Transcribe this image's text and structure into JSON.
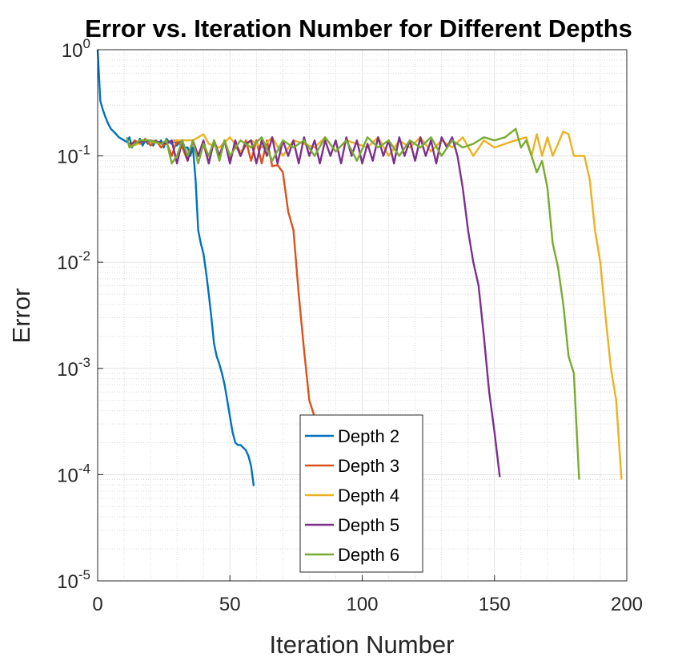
{
  "chart_data": {
    "type": "line",
    "title": "Error vs. Iteration Number for Different Depths",
    "xlabel": "Iteration Number",
    "ylabel": "Error",
    "xlim": [
      0,
      200
    ],
    "ylim": [
      1e-05,
      1
    ],
    "yscale": "log",
    "grid": true,
    "minor_grid": true,
    "legend_position": "bottom-center",
    "x_ticks": [
      "0",
      "50",
      "100",
      "150",
      "200"
    ],
    "y_ticks": [
      {
        "base": "10",
        "exp": "0"
      },
      {
        "base": "10",
        "exp": "-1"
      },
      {
        "base": "10",
        "exp": "-2"
      },
      {
        "base": "10",
        "exp": "-3"
      },
      {
        "base": "10",
        "exp": "-4"
      },
      {
        "base": "10",
        "exp": "-5"
      }
    ],
    "series": [
      {
        "name": "Depth 2",
        "color": "#0072BD",
        "x": [
          0,
          1,
          2,
          3,
          4,
          5,
          6,
          7,
          8,
          9,
          10,
          11,
          12,
          13,
          14,
          15,
          16,
          17,
          18,
          19,
          20,
          21,
          22,
          23,
          24,
          25,
          26,
          27,
          28,
          29,
          30,
          31,
          32,
          33,
          34,
          35,
          36,
          37,
          38,
          39,
          40,
          41,
          42,
          43,
          44,
          45,
          46,
          47,
          48,
          49,
          50,
          51,
          52,
          53,
          54,
          55,
          56,
          57,
          58,
          59
        ],
        "y": [
          1.0,
          0.33,
          0.27,
          0.23,
          0.2,
          0.18,
          0.17,
          0.16,
          0.15,
          0.145,
          0.14,
          0.135,
          0.15,
          0.12,
          0.14,
          0.13,
          0.145,
          0.125,
          0.14,
          0.13,
          0.14,
          0.125,
          0.14,
          0.13,
          0.14,
          0.12,
          0.145,
          0.135,
          0.13,
          0.14,
          0.125,
          0.14,
          0.13,
          0.12,
          0.12,
          0.1,
          0.12,
          0.06,
          0.02,
          0.015,
          0.012,
          0.008,
          0.005,
          0.003,
          0.0017,
          0.0013,
          0.0011,
          0.0009,
          0.0007,
          0.0005,
          0.00035,
          0.00025,
          0.0002,
          0.00019,
          0.00019,
          0.00018,
          0.00017,
          0.00015,
          0.00012,
          7.8e-05
        ]
      },
      {
        "name": "Depth 3",
        "color": "#D95319",
        "x": [
          12,
          14,
          16,
          18,
          20,
          22,
          24,
          26,
          28,
          30,
          32,
          34,
          36,
          38,
          40,
          42,
          44,
          46,
          48,
          50,
          52,
          54,
          56,
          58,
          60,
          62,
          64,
          66,
          68,
          70,
          72,
          74,
          76,
          78,
          80,
          82
        ],
        "y": [
          0.12,
          0.14,
          0.13,
          0.145,
          0.125,
          0.14,
          0.12,
          0.135,
          0.1,
          0.14,
          0.12,
          0.09,
          0.14,
          0.1,
          0.13,
          0.085,
          0.14,
          0.1,
          0.14,
          0.09,
          0.13,
          0.1,
          0.14,
          0.09,
          0.14,
          0.085,
          0.14,
          0.08,
          0.082,
          0.07,
          0.03,
          0.02,
          0.005,
          0.0015,
          0.0005,
          0.00035
        ]
      },
      {
        "name": "Depth 4",
        "color": "#EDB120",
        "x": [
          12,
          18,
          24,
          30,
          36,
          40,
          42,
          46,
          50,
          54,
          58,
          62,
          66,
          70,
          74,
          78,
          82,
          86,
          90,
          94,
          98,
          102,
          106,
          110,
          114,
          118,
          122,
          126,
          130,
          134,
          138,
          142,
          146,
          150,
          154,
          158,
          162,
          164,
          166,
          168,
          170,
          172,
          174,
          176,
          178,
          180,
          182,
          184,
          186,
          188,
          190,
          192,
          194,
          196,
          198
        ],
        "y": [
          0.12,
          0.14,
          0.13,
          0.14,
          0.14,
          0.16,
          0.13,
          0.12,
          0.15,
          0.11,
          0.14,
          0.12,
          0.15,
          0.1,
          0.14,
          0.13,
          0.12,
          0.15,
          0.11,
          0.14,
          0.13,
          0.12,
          0.15,
          0.1,
          0.14,
          0.12,
          0.15,
          0.11,
          0.14,
          0.12,
          0.15,
          0.1,
          0.14,
          0.12,
          0.13,
          0.14,
          0.15,
          0.1,
          0.16,
          0.1,
          0.15,
          0.1,
          0.13,
          0.17,
          0.16,
          0.1,
          0.1,
          0.1,
          0.06,
          0.02,
          0.01,
          0.003,
          0.001,
          0.0005,
          9e-05
        ]
      },
      {
        "name": "Depth 5",
        "color": "#7E2F8E",
        "x": [
          12,
          20,
          26,
          28,
          30,
          32,
          34,
          36,
          38,
          40,
          42,
          44,
          46,
          48,
          50,
          52,
          54,
          56,
          58,
          60,
          62,
          64,
          66,
          68,
          70,
          72,
          74,
          76,
          78,
          80,
          82,
          84,
          86,
          88,
          90,
          92,
          94,
          96,
          98,
          100,
          102,
          104,
          106,
          108,
          110,
          112,
          114,
          116,
          118,
          120,
          122,
          124,
          126,
          128,
          130,
          132,
          134,
          136,
          138,
          140,
          142,
          144,
          146,
          148,
          150,
          152
        ],
        "y": [
          0.13,
          0.14,
          0.13,
          0.14,
          0.085,
          0.14,
          0.09,
          0.14,
          0.1,
          0.14,
          0.085,
          0.14,
          0.1,
          0.14,
          0.085,
          0.14,
          0.1,
          0.13,
          0.14,
          0.085,
          0.14,
          0.1,
          0.15,
          0.085,
          0.14,
          0.1,
          0.14,
          0.085,
          0.15,
          0.1,
          0.14,
          0.085,
          0.14,
          0.1,
          0.14,
          0.085,
          0.15,
          0.1,
          0.14,
          0.085,
          0.13,
          0.09,
          0.15,
          0.1,
          0.14,
          0.085,
          0.15,
          0.1,
          0.14,
          0.09,
          0.15,
          0.1,
          0.14,
          0.085,
          0.15,
          0.12,
          0.15,
          0.1,
          0.05,
          0.02,
          0.01,
          0.006,
          0.002,
          0.0006,
          0.00025,
          9.5e-05
        ]
      },
      {
        "name": "Depth 6",
        "color": "#77AC30",
        "x": [
          11,
          12,
          14,
          16,
          20,
          24,
          26,
          28,
          30,
          32,
          34,
          36,
          38,
          40,
          42,
          44,
          46,
          48,
          50,
          54,
          58,
          62,
          66,
          70,
          74,
          78,
          82,
          86,
          90,
          94,
          98,
          102,
          106,
          110,
          114,
          118,
          122,
          126,
          130,
          134,
          138,
          142,
          146,
          150,
          154,
          158,
          160,
          162,
          164,
          166,
          168,
          170,
          172,
          174,
          176,
          178,
          180,
          182
        ],
        "y": [
          0.15,
          0.12,
          0.13,
          0.14,
          0.14,
          0.13,
          0.14,
          0.085,
          0.1,
          0.14,
          0.1,
          0.14,
          0.085,
          0.13,
          0.1,
          0.14,
          0.09,
          0.14,
          0.1,
          0.14,
          0.12,
          0.15,
          0.09,
          0.14,
          0.12,
          0.14,
          0.1,
          0.15,
          0.11,
          0.14,
          0.09,
          0.15,
          0.12,
          0.14,
          0.1,
          0.14,
          0.12,
          0.15,
          0.1,
          0.14,
          0.12,
          0.13,
          0.15,
          0.14,
          0.15,
          0.18,
          0.12,
          0.14,
          0.1,
          0.07,
          0.09,
          0.05,
          0.015,
          0.009,
          0.004,
          0.0013,
          0.0009,
          9e-05
        ]
      }
    ]
  }
}
